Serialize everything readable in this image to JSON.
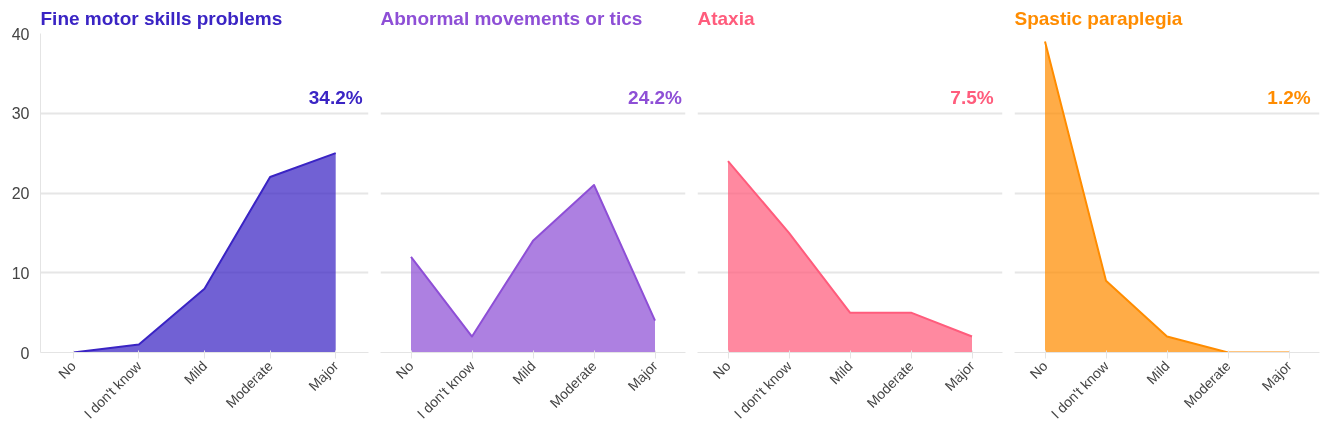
{
  "chart_data": [
    {
      "type": "area",
      "title": "Fine motor skills problems",
      "categories": [
        "No",
        "I don't know",
        "Mild",
        "Moderate",
        "Major"
      ],
      "series": [
        {
          "color": "#3a24c4",
          "values": [
            0,
            1,
            8,
            22,
            25
          ]
        }
      ],
      "ylim": [
        0,
        40
      ],
      "yticks": [
        0,
        10,
        20,
        30,
        40
      ],
      "grid": "y",
      "annotations": [
        "34.2%"
      ]
    },
    {
      "type": "area",
      "title": "Abnormal movements or tics",
      "categories": [
        "No",
        "I don't know",
        "Mild",
        "Moderate",
        "Major"
      ],
      "series": [
        {
          "color": "#8e4fd6",
          "values": [
            12,
            2,
            14,
            21,
            4
          ]
        }
      ],
      "ylim": [
        0,
        40
      ],
      "yticks": [
        0,
        10,
        20,
        30,
        40
      ],
      "grid": "y",
      "tick_labels": "x",
      "annotations": [
        "24.2%"
      ]
    },
    {
      "type": "area",
      "title": "Ataxia",
      "categories": [
        "No",
        "I don't know",
        "Mild",
        "Moderate",
        "Major"
      ],
      "series": [
        {
          "color": "#ff5c7c",
          "values": [
            24,
            15,
            5,
            5,
            2
          ]
        }
      ],
      "ylim": [
        0,
        40
      ],
      "yticks": [
        0,
        10,
        20,
        30,
        40
      ],
      "grid": "y",
      "tick_labels": "x",
      "annotations": [
        "7.5%"
      ]
    },
    {
      "type": "area",
      "title": "Spastic paraplegia",
      "categories": [
        "No",
        "I don't know",
        "Mild",
        "Moderate",
        "Major"
      ],
      "series": [
        {
          "color": "#ff8c00",
          "values": [
            39,
            9,
            2,
            0,
            0
          ]
        }
      ],
      "ylim": [
        0,
        40
      ],
      "yticks": [
        0,
        10,
        20,
        30,
        40
      ],
      "grid": "y",
      "tick_labels": "x",
      "annotations": [
        "1.2%"
      ]
    }
  ]
}
